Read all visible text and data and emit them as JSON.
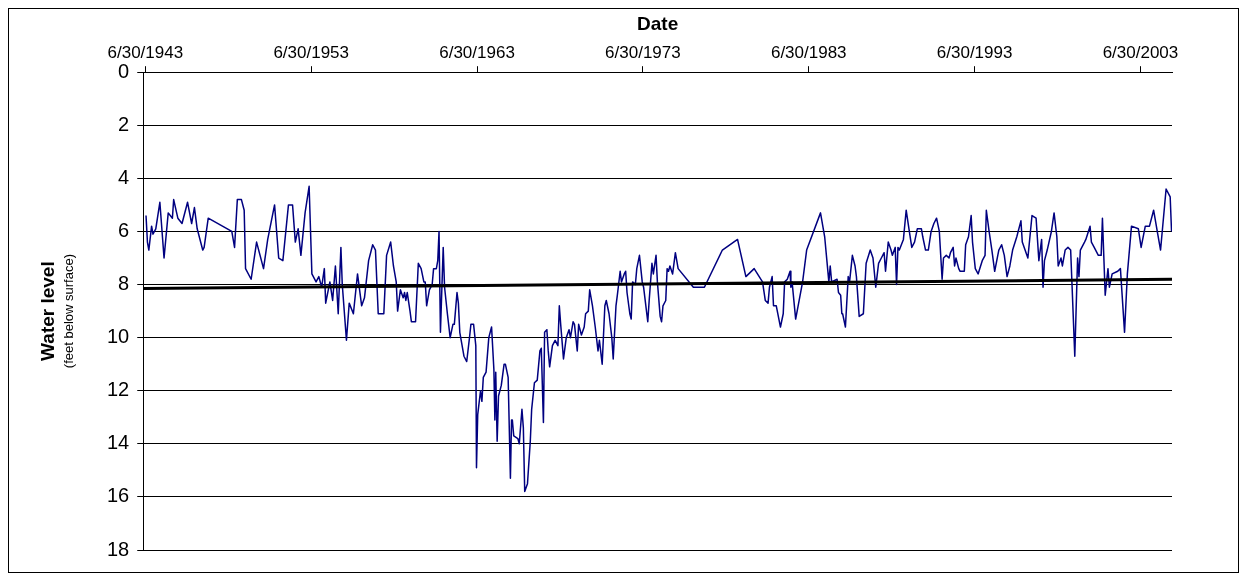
{
  "chart_data": {
    "type": "line",
    "xlabel": "Date",
    "ylabel": "Water level\n(feet below surface)",
    "xlim": [
      "1943-05-15",
      "2005-05-25"
    ],
    "ylim": [
      18,
      0
    ],
    "xticks": [
      {
        "value": "1943-06-30",
        "label": "6/30/1943"
      },
      {
        "value": "1953-06-30",
        "label": "6/30/1953"
      },
      {
        "value": "1963-06-30",
        "label": "6/30/1963"
      },
      {
        "value": "1973-06-30",
        "label": "6/30/1973"
      },
      {
        "value": "1983-06-30",
        "label": "6/30/1983"
      },
      {
        "value": "1993-06-30",
        "label": "6/30/1993"
      },
      {
        "value": "2003-06-30",
        "label": "6/30/2003"
      }
    ],
    "yticks": [
      0,
      2,
      4,
      6,
      8,
      10,
      12,
      14,
      16,
      18
    ],
    "grid": "y",
    "series": [
      {
        "color": "#000080",
        "x": [
          "1943-07",
          "1943-08",
          "1943-09",
          "1943-11",
          "1943-12",
          "1944-02",
          "1944-05",
          "1944-08",
          "1944-11",
          "1945-02",
          "1945-03",
          "1945-06",
          "1945-09",
          "1946-01",
          "1946-04",
          "1946-06",
          "1946-08",
          "1946-12",
          "1947-01",
          "1947-04",
          "1948-09",
          "1948-11",
          "1949-01",
          "1949-04",
          "1949-06",
          "1949-07",
          "1949-11",
          "1950-03",
          "1950-08",
          "1950-11",
          "1951-04",
          "1951-07",
          "1951-10",
          "1952-02",
          "1952-05",
          "1952-07",
          "1952-09",
          "1952-11",
          "1953-02",
          "1953-05",
          "1953-07",
          "1953-10",
          "1953-12",
          "1954-02",
          "1954-04",
          "1954-05",
          "1954-08",
          "1954-10",
          "1954-12",
          "1955-02",
          "1955-04",
          "1955-05",
          "1955-08",
          "1955-10",
          "1956-01",
          "1956-04",
          "1956-07",
          "1956-09",
          "1956-12",
          "1957-03",
          "1957-05",
          "1957-07",
          "1957-11",
          "1958-01",
          "1958-04",
          "1958-06",
          "1958-08",
          "1958-09",
          "1958-11",
          "1959-01",
          "1959-02",
          "1959-03",
          "1959-04",
          "1959-06",
          "1959-07",
          "1959-10",
          "1959-12",
          "1960-02",
          "1960-04",
          "1960-05",
          "1960-06",
          "1960-08",
          "1960-10",
          "1960-11",
          "1961-01",
          "1961-02",
          "1961-03",
          "1961-04",
          "1961-06",
          "1961-07",
          "1961-09",
          "1961-11",
          "1962-01",
          "1962-02",
          "1962-04",
          "1962-05",
          "1962-06",
          "1962-09",
          "1962-11",
          "1963-01",
          "1963-02",
          "1963-04",
          "1963-06-03",
          "1963-06-18",
          "1963-07",
          "1963-09",
          "1963-10",
          "1963-11",
          "1964-01",
          "1964-03",
          "1964-05",
          "1964-07-05",
          "1964-07-27",
          "1964-08",
          "1964-09",
          "1964-10",
          "1964-12",
          "1965-02",
          "1965-03",
          "1965-05",
          "1965-07-04",
          "1965-07-29",
          "1965-08",
          "1965-09",
          "1965-12",
          "1966-01",
          "1966-03",
          "1966-04",
          "1966-05",
          "1966-07",
          "1966-09",
          "1966-10",
          "1966-12",
          "1967-02",
          "1967-04",
          "1967-05",
          "1967-07-01",
          "1967-07-27",
          "1967-09",
          "1967-10",
          "1967-11",
          "1968-01",
          "1968-03",
          "1968-05",
          "1968-06",
          "1968-07",
          "1968-09",
          "1968-11",
          "1969-01",
          "1969-02",
          "1969-04",
          "1969-05",
          "1969-07",
          "1969-08",
          "1969-10",
          "1969-12",
          "1970-01",
          "1970-03",
          "1970-04",
          "1970-06",
          "1970-08",
          "1970-10",
          "1970-11",
          "1971-01",
          "1971-03",
          "1971-04",
          "1971-06",
          "1971-08",
          "1971-09",
          "1971-11",
          "1971-12",
          "1972-02",
          "1972-03",
          "1972-05",
          "1972-06",
          "1972-07",
          "1972-09",
          "1972-10",
          "1972-11",
          "1973-01",
          "1973-02",
          "1973-04",
          "1973-06",
          "1973-07",
          "1973-10",
          "1973-11",
          "1974-01",
          "1974-02",
          "1974-04",
          "1974-05",
          "1974-07",
          "1974-08",
          "1974-09",
          "1974-11",
          "1974-12",
          "1975-01",
          "1975-02",
          "1975-04",
          "1975-06",
          "1975-08",
          "1976-07",
          "1977-03",
          "1978-04",
          "1979-03",
          "1979-09",
          "1980-03",
          "1980-09",
          "1980-11",
          "1981-01",
          "1981-02",
          "1981-04",
          "1981-05",
          "1981-07",
          "1981-10",
          "1981-12",
          "1982-01",
          "1982-03",
          "1982-05",
          "1982-06-01",
          "1982-06-28",
          "1982-09",
          "1983-02",
          "1983-05",
          "1984-03",
          "1984-06",
          "1984-09",
          "1984-10",
          "1984-11",
          "1985-03",
          "1985-04",
          "1985-06-02",
          "1985-06-28",
          "1985-07",
          "1985-09",
          "1985-11",
          "1985-12",
          "1986-02",
          "1986-04",
          "1986-05",
          "1986-07",
          "1986-10",
          "1986-12",
          "1987-03",
          "1987-05",
          "1987-07",
          "1987-09",
          "1987-11",
          "1988-01",
          "1988-02",
          "1988-04",
          "1988-06",
          "1988-07",
          "1988-09",
          "1988-10",
          "1988-11",
          "1988-12",
          "1989-03",
          "1989-05",
          "1989-07",
          "1989-09",
          "1989-11",
          "1990-01",
          "1990-04",
          "1990-05",
          "1990-07",
          "1990-09",
          "1990-11",
          "1991-01",
          "1991-03",
          "1991-05",
          "1991-07",
          "1991-08",
          "1991-10",
          "1991-12",
          "1992-01",
          "1992-03",
          "1992-04",
          "1992-05",
          "1992-07",
          "1992-08",
          "1992-11",
          "1992-12",
          "1993-02",
          "1993-04",
          "1993-05",
          "1993-07",
          "1993-09",
          "1993-12",
          "1994-02",
          "1994-03",
          "1994-05",
          "1994-07",
          "1994-09",
          "1994-12",
          "1995-02",
          "1995-04",
          "1995-06",
          "1995-08",
          "1995-10",
          "1996-01",
          "1996-04",
          "1996-05",
          "1996-09",
          "1996-12",
          "1997-03",
          "1997-05",
          "1997-07",
          "1997-08",
          "1997-09",
          "1997-11",
          "1998-02",
          "1998-04",
          "1998-06",
          "1998-07",
          "1998-09",
          "1998-10",
          "1998-12",
          "1999-02",
          "1999-04",
          "1999-05",
          "1999-07",
          "1999-09",
          "1999-10",
          "1999-11",
          "2000-02",
          "2000-03",
          "2000-06",
          "2000-07",
          "2000-09",
          "2000-12",
          "2001-02",
          "2001-03",
          "2001-05",
          "2001-07",
          "2001-08",
          "2001-10",
          "2002-02",
          "2002-04",
          "2002-07",
          "2002-09",
          "2002-12",
          "2003-05",
          "2003-07",
          "2003-10",
          "2004-01",
          "2004-04",
          "2004-07",
          "2004-09",
          "2005-01",
          "2005-04",
          "2005-05"
        ],
        "values": [
          5.4,
          6.4,
          6.7,
          5.8,
          6.1,
          5.9,
          4.9,
          7.0,
          5.3,
          5.5,
          4.8,
          5.5,
          5.7,
          4.9,
          5.7,
          5.1,
          5.9,
          6.7,
          6.6,
          5.5,
          6.0,
          6.6,
          4.8,
          4.8,
          5.2,
          7.4,
          7.8,
          6.4,
          7.4,
          6.3,
          5.0,
          7.0,
          7.1,
          5.0,
          5.0,
          6.4,
          5.9,
          6.9,
          5.3,
          4.3,
          7.6,
          7.9,
          7.7,
          8.1,
          7.4,
          8.7,
          7.9,
          8.6,
          7.3,
          9.1,
          6.6,
          8.0,
          10.1,
          8.7,
          9.1,
          7.6,
          8.8,
          8.5,
          7.1,
          6.5,
          6.7,
          9.1,
          9.1,
          6.9,
          6.4,
          7.3,
          7.9,
          9.0,
          8.2,
          8.5,
          8.3,
          8.6,
          8.3,
          9.0,
          9.4,
          9.4,
          7.2,
          7.4,
          7.9,
          7.9,
          8.8,
          8.2,
          8.0,
          7.4,
          7.4,
          7.1,
          6.0,
          9.8,
          6.6,
          8.1,
          9.1,
          10.0,
          9.5,
          9.5,
          8.3,
          8.7,
          9.8,
          10.7,
          10.9,
          10.0,
          9.5,
          9.5,
          10.3,
          14.9,
          12.9,
          12.0,
          12.4,
          11.5,
          11.3,
          10.0,
          9.6,
          11.2,
          13.1,
          11.3,
          13.9,
          12.2,
          11.8,
          11.0,
          11.0,
          11.5,
          15.3,
          13.1,
          13.1,
          13.7,
          13.8,
          14.0,
          12.7,
          13.4,
          15.8,
          15.5,
          13.9,
          12.7,
          11.7,
          11.6,
          10.5,
          10.4,
          13.2,
          9.8,
          9.7,
          10.5,
          11.1,
          10.3,
          10.1,
          10.3,
          8.8,
          9.5,
          10.8,
          10.0,
          9.7,
          10.0,
          9.4,
          9.5,
          10.5,
          9.5,
          9.9,
          9.6,
          9.1,
          9.0,
          8.2,
          8.8,
          9.6,
          10.5,
          10.1,
          11.0,
          8.8,
          8.6,
          9.1,
          10.0,
          10.8,
          8.8,
          8.4,
          7.5,
          7.9,
          7.6,
          7.5,
          8.3,
          9.1,
          9.3,
          7.9,
          8.0,
          7.4,
          6.9,
          7.9,
          8.1,
          9.4,
          8.6,
          7.2,
          7.6,
          6.9,
          7.9,
          9.2,
          9.4,
          8.8,
          8.6,
          7.4,
          7.5,
          7.3,
          7.6,
          6.8,
          7.4,
          8.1,
          8.1,
          6.7,
          6.3,
          7.7,
          7.4,
          7.9,
          8.6,
          8.7,
          8.1,
          7.7,
          8.8,
          8.8,
          9.6,
          9.1,
          7.9,
          7.8,
          7.5,
          8.1,
          7.9,
          9.3,
          7.9,
          6.7,
          5.3,
          6.2,
          7.9,
          7.3,
          7.9,
          7.8,
          8.3,
          8.4,
          9.1,
          9.1,
          9.6,
          7.7,
          7.9,
          6.9,
          7.3,
          7.7,
          9.2,
          9.1,
          7.2,
          6.7,
          7.0,
          8.1,
          7.2,
          7.0,
          6.8,
          7.5,
          6.4,
          6.7,
          6.9,
          6.6,
          8.0,
          6.6,
          6.7,
          6.3,
          5.2,
          5.9,
          6.6,
          6.4,
          5.9,
          5.9,
          6.2,
          6.7,
          6.7,
          6.0,
          5.7,
          5.5,
          6.0,
          7.8,
          7.0,
          6.9,
          7.0,
          6.8,
          6.6,
          7.3,
          7.0,
          7.4,
          7.5,
          7.5,
          6.5,
          6.2,
          5.4,
          6.4,
          7.4,
          7.6,
          7.1,
          6.9,
          5.2,
          6.0,
          6.7,
          7.5,
          6.7,
          6.5,
          6.9,
          7.7,
          7.3,
          6.7,
          6.2,
          5.6,
          6.4,
          7.0,
          5.4,
          5.5,
          7.1,
          6.3,
          8.1,
          7.1,
          6.7,
          6.0,
          5.3,
          6.2,
          7.3,
          7.0,
          7.3,
          6.7,
          6.6,
          6.7,
          8.0,
          10.7,
          7.0,
          7.7,
          6.7,
          6.4,
          6.3,
          5.8,
          6.4,
          6.6,
          6.9,
          6.9,
          5.5,
          8.4,
          7.4,
          8.1,
          7.6,
          7.5,
          7.4,
          9.8,
          7.6,
          5.8,
          5.9,
          6.6,
          5.8,
          5.8,
          5.2,
          6.1,
          6.7,
          4.4,
          4.7,
          6.0
        ]
      },
      {
        "type": "line",
        "color": "#000000",
        "x": [
          "1943-05-15",
          "2005-05-25"
        ],
        "values": [
          8.15,
          7.8
        ]
      }
    ]
  }
}
